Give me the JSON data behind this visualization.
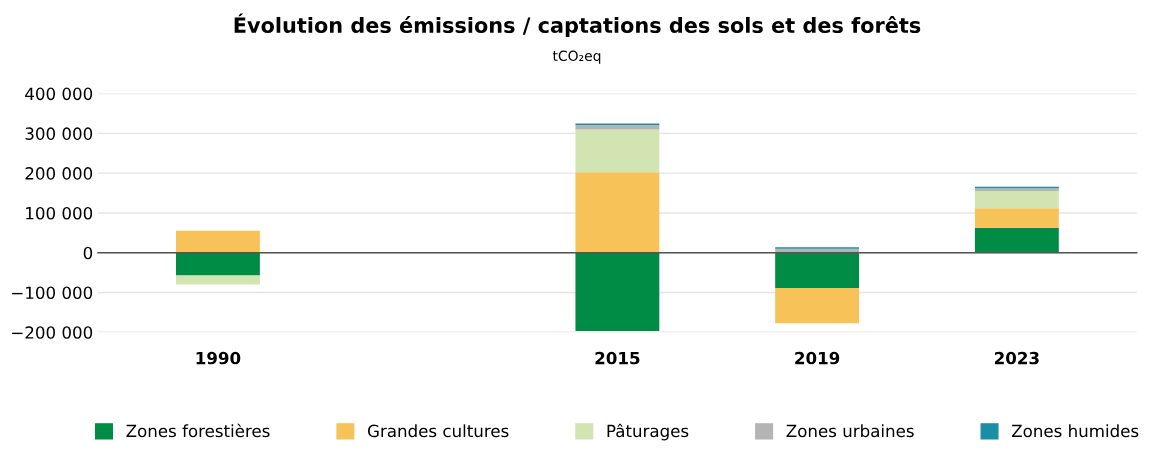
{
  "chart_data": {
    "type": "bar",
    "stacked": true,
    "title": "Évolution des émissions / captations des sols et des forêts",
    "subtitle": "tCO₂eq",
    "categories": [
      "1990",
      null,
      "2015",
      "2019",
      "2023"
    ],
    "series": [
      {
        "name": "Zones forestières",
        "color": "#008c44",
        "values": [
          -57000,
          null,
          -197000,
          -89000,
          63000
        ]
      },
      {
        "name": "Grandes cultures",
        "color": "#f7c257",
        "values": [
          55000,
          null,
          202000,
          -88000,
          49000
        ]
      },
      {
        "name": "Pâturages",
        "color": "#d1e4b2",
        "values": [
          -23000,
          null,
          108000,
          null,
          43000
        ]
      },
      {
        "name": "Zones urbaines",
        "color": "#b4b4b4",
        "values": [
          null,
          null,
          11000,
          10000,
          7000
        ]
      },
      {
        "name": "Zones humides",
        "color": "#1b8ea5",
        "values": [
          null,
          null,
          4000,
          4000,
          4000
        ]
      }
    ],
    "ylim": [
      -200000,
      400000
    ],
    "yticks": [
      {
        "value": -200000,
        "label": "−200 000"
      },
      {
        "value": -100000,
        "label": "−100 000"
      },
      0,
      {
        "value": 100000,
        "label": "100 000"
      },
      {
        "value": 200000,
        "label": "200 000"
      },
      {
        "value": 300000,
        "label": "300 000"
      },
      {
        "value": 400000,
        "label": "400 000"
      }
    ],
    "grid": "y",
    "legend": "bottom"
  }
}
